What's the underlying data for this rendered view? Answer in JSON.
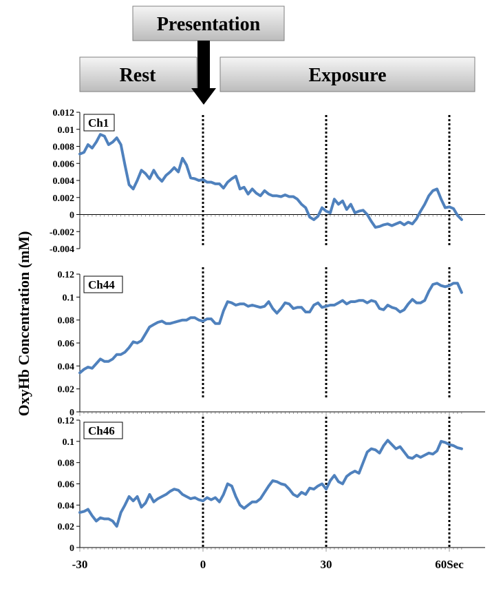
{
  "header": {
    "presentation_label": "Presentation",
    "rest_label": "Rest",
    "exposure_label": "Exposure"
  },
  "colors": {
    "series_line": "#4f81bd",
    "box_fill_top": "#f4f4f4",
    "box_fill_bottom": "#bdbdbd",
    "event_marker": "#000000"
  },
  "chart_data": {
    "type": "line",
    "ylabel": "OxyHb Concentration  (mM)",
    "xlabel": "",
    "x_tick_labels": [
      "-30",
      "0",
      "30",
      "60Sec"
    ],
    "x_tick_values": [
      -30,
      0,
      30,
      60
    ],
    "xlim": [
      -30,
      63
    ],
    "event_markers_x": [
      0,
      30,
      60
    ],
    "grid": false,
    "panels": [
      {
        "label": "Ch1",
        "ylim": [
          -0.004,
          0.012
        ],
        "y_ticks": [
          -0.004,
          -0.002,
          0,
          0.002,
          0.004,
          0.006,
          0.008,
          0.01,
          0.012
        ],
        "y_tick_labels": [
          "-0.004",
          "-0.002",
          "0",
          "0.002",
          "0.004",
          "0.006",
          "0.008",
          "0.01",
          "0.012"
        ],
        "series": [
          {
            "x": [
              -30,
              -29,
              -28,
              -27,
              -26,
              -25,
              -24,
              -23,
              -22,
              -21,
              -20,
              -19,
              -18,
              -17,
              -16,
              -15,
              -14,
              -13,
              -12,
              -11,
              -10,
              -9,
              -8,
              -7,
              -6,
              -5,
              -4,
              -3,
              -2,
              -1,
              0,
              1,
              2,
              3,
              4,
              5,
              6,
              7,
              8,
              9,
              10,
              11,
              12,
              13,
              14,
              15,
              16,
              17,
              18,
              19,
              20,
              21,
              22,
              23,
              24,
              25,
              26,
              27,
              28,
              29,
              30,
              31,
              32,
              33,
              34,
              35,
              36,
              37,
              38,
              39,
              40,
              41,
              42,
              43,
              44,
              45,
              46,
              47,
              48,
              49,
              50,
              51,
              52,
              53,
              54,
              55,
              56,
              57,
              58,
              59,
              60,
              61,
              62,
              63
            ],
            "values": [
              0.0071,
              0.0073,
              0.0082,
              0.0078,
              0.0085,
              0.0094,
              0.0092,
              0.0082,
              0.0085,
              0.009,
              0.0082,
              0.0058,
              0.0035,
              0.003,
              0.004,
              0.0052,
              0.0048,
              0.0042,
              0.0052,
              0.0044,
              0.0039,
              0.0046,
              0.005,
              0.0055,
              0.005,
              0.0066,
              0.0058,
              0.0043,
              0.0042,
              0.004,
              0.0041,
              0.0038,
              0.0038,
              0.0036,
              0.0036,
              0.0031,
              0.0038,
              0.0042,
              0.0045,
              0.003,
              0.0032,
              0.0024,
              0.003,
              0.0025,
              0.0022,
              0.0028,
              0.0024,
              0.0022,
              0.0022,
              0.0021,
              0.0023,
              0.0021,
              0.0021,
              0.0018,
              0.0012,
              0.0008,
              -0.0003,
              -0.0006,
              -0.0002,
              0.0008,
              0.0004,
              0.0002,
              0.0018,
              0.0012,
              0.0016,
              0.0006,
              0.0012,
              0.0002,
              0.0004,
              0.0005,
              0.0,
              -0.0008,
              -0.0015,
              -0.0014,
              -0.0012,
              -0.0011,
              -0.0013,
              -0.0011,
              -0.0009,
              -0.0012,
              -0.0009,
              -0.0011,
              -0.0005,
              0.0004,
              0.0012,
              0.0022,
              0.0028,
              0.003,
              0.0018,
              0.0008,
              0.0009,
              0.0007,
              -0.0001,
              -0.0006
            ]
          }
        ]
      },
      {
        "label": "Ch44",
        "ylim": [
          0,
          0.12
        ],
        "y_ticks": [
          0,
          0.02,
          0.04,
          0.06,
          0.08,
          0.1,
          0.12
        ],
        "y_tick_labels": [
          "0",
          "0.02",
          "0.04",
          "0.06",
          "0.08",
          "0.1",
          "0.12"
        ],
        "series": [
          {
            "x": [
              -30,
              -29,
              -28,
              -27,
              -26,
              -25,
              -24,
              -23,
              -22,
              -21,
              -20,
              -19,
              -18,
              -17,
              -16,
              -15,
              -14,
              -13,
              -12,
              -11,
              -10,
              -9,
              -8,
              -7,
              -6,
              -5,
              -4,
              -3,
              -2,
              -1,
              0,
              1,
              2,
              3,
              4,
              5,
              6,
              7,
              8,
              9,
              10,
              11,
              12,
              13,
              14,
              15,
              16,
              17,
              18,
              19,
              20,
              21,
              22,
              23,
              24,
              25,
              26,
              27,
              28,
              29,
              30,
              31,
              32,
              33,
              34,
              35,
              36,
              37,
              38,
              39,
              40,
              41,
              42,
              43,
              44,
              45,
              46,
              47,
              48,
              49,
              50,
              51,
              52,
              53,
              54,
              55,
              56,
              57,
              58,
              59,
              60,
              61,
              62,
              63
            ],
            "values": [
              0.034,
              0.037,
              0.039,
              0.038,
              0.042,
              0.046,
              0.044,
              0.044,
              0.046,
              0.05,
              0.05,
              0.052,
              0.056,
              0.061,
              0.06,
              0.062,
              0.068,
              0.074,
              0.076,
              0.078,
              0.079,
              0.077,
              0.077,
              0.078,
              0.079,
              0.08,
              0.08,
              0.082,
              0.082,
              0.08,
              0.079,
              0.081,
              0.081,
              0.077,
              0.077,
              0.088,
              0.096,
              0.095,
              0.093,
              0.094,
              0.094,
              0.092,
              0.093,
              0.092,
              0.091,
              0.092,
              0.096,
              0.09,
              0.086,
              0.09,
              0.095,
              0.094,
              0.09,
              0.091,
              0.091,
              0.087,
              0.087,
              0.093,
              0.095,
              0.091,
              0.092,
              0.093,
              0.093,
              0.095,
              0.097,
              0.094,
              0.096,
              0.096,
              0.097,
              0.097,
              0.095,
              0.097,
              0.096,
              0.09,
              0.089,
              0.093,
              0.091,
              0.09,
              0.087,
              0.089,
              0.094,
              0.098,
              0.095,
              0.095,
              0.097,
              0.105,
              0.111,
              0.112,
              0.11,
              0.109,
              0.11,
              0.112,
              0.112,
              0.104
            ]
          }
        ]
      },
      {
        "label": "Ch46",
        "ylim": [
          0,
          0.12
        ],
        "y_ticks": [
          0,
          0.02,
          0.04,
          0.06,
          0.08,
          0.1,
          0.12
        ],
        "y_tick_labels": [
          "0",
          "0.02",
          "0.04",
          "0.06",
          "0.08",
          "0.1",
          "0.12"
        ],
        "series": [
          {
            "x": [
              -30,
              -29,
              -28,
              -27,
              -26,
              -25,
              -24,
              -23,
              -22,
              -21,
              -20,
              -19,
              -18,
              -17,
              -16,
              -15,
              -14,
              -13,
              -12,
              -11,
              -10,
              -9,
              -8,
              -7,
              -6,
              -5,
              -4,
              -3,
              -2,
              -1,
              0,
              1,
              2,
              3,
              4,
              5,
              6,
              7,
              8,
              9,
              10,
              11,
              12,
              13,
              14,
              15,
              16,
              17,
              18,
              19,
              20,
              21,
              22,
              23,
              24,
              25,
              26,
              27,
              28,
              29,
              30,
              31,
              32,
              33,
              34,
              35,
              36,
              37,
              38,
              39,
              40,
              41,
              42,
              43,
              44,
              45,
              46,
              47,
              48,
              49,
              50,
              51,
              52,
              53,
              54,
              55,
              56,
              57,
              58,
              59,
              60,
              61,
              62,
              63
            ],
            "values": [
              0.033,
              0.034,
              0.036,
              0.03,
              0.025,
              0.028,
              0.027,
              0.027,
              0.025,
              0.02,
              0.033,
              0.04,
              0.048,
              0.044,
              0.048,
              0.038,
              0.042,
              0.05,
              0.043,
              0.046,
              0.048,
              0.05,
              0.053,
              0.055,
              0.054,
              0.05,
              0.048,
              0.046,
              0.047,
              0.045,
              0.044,
              0.047,
              0.045,
              0.047,
              0.043,
              0.05,
              0.06,
              0.058,
              0.048,
              0.04,
              0.037,
              0.04,
              0.043,
              0.043,
              0.046,
              0.052,
              0.058,
              0.063,
              0.062,
              0.06,
              0.059,
              0.055,
              0.05,
              0.048,
              0.052,
              0.05,
              0.056,
              0.055,
              0.058,
              0.06,
              0.055,
              0.063,
              0.068,
              0.062,
              0.06,
              0.067,
              0.07,
              0.072,
              0.07,
              0.08,
              0.09,
              0.093,
              0.092,
              0.089,
              0.096,
              0.101,
              0.097,
              0.093,
              0.095,
              0.09,
              0.085,
              0.084,
              0.087,
              0.085,
              0.087,
              0.089,
              0.088,
              0.091,
              0.1,
              0.099,
              0.097,
              0.096,
              0.094,
              0.093
            ]
          }
        ]
      }
    ]
  }
}
